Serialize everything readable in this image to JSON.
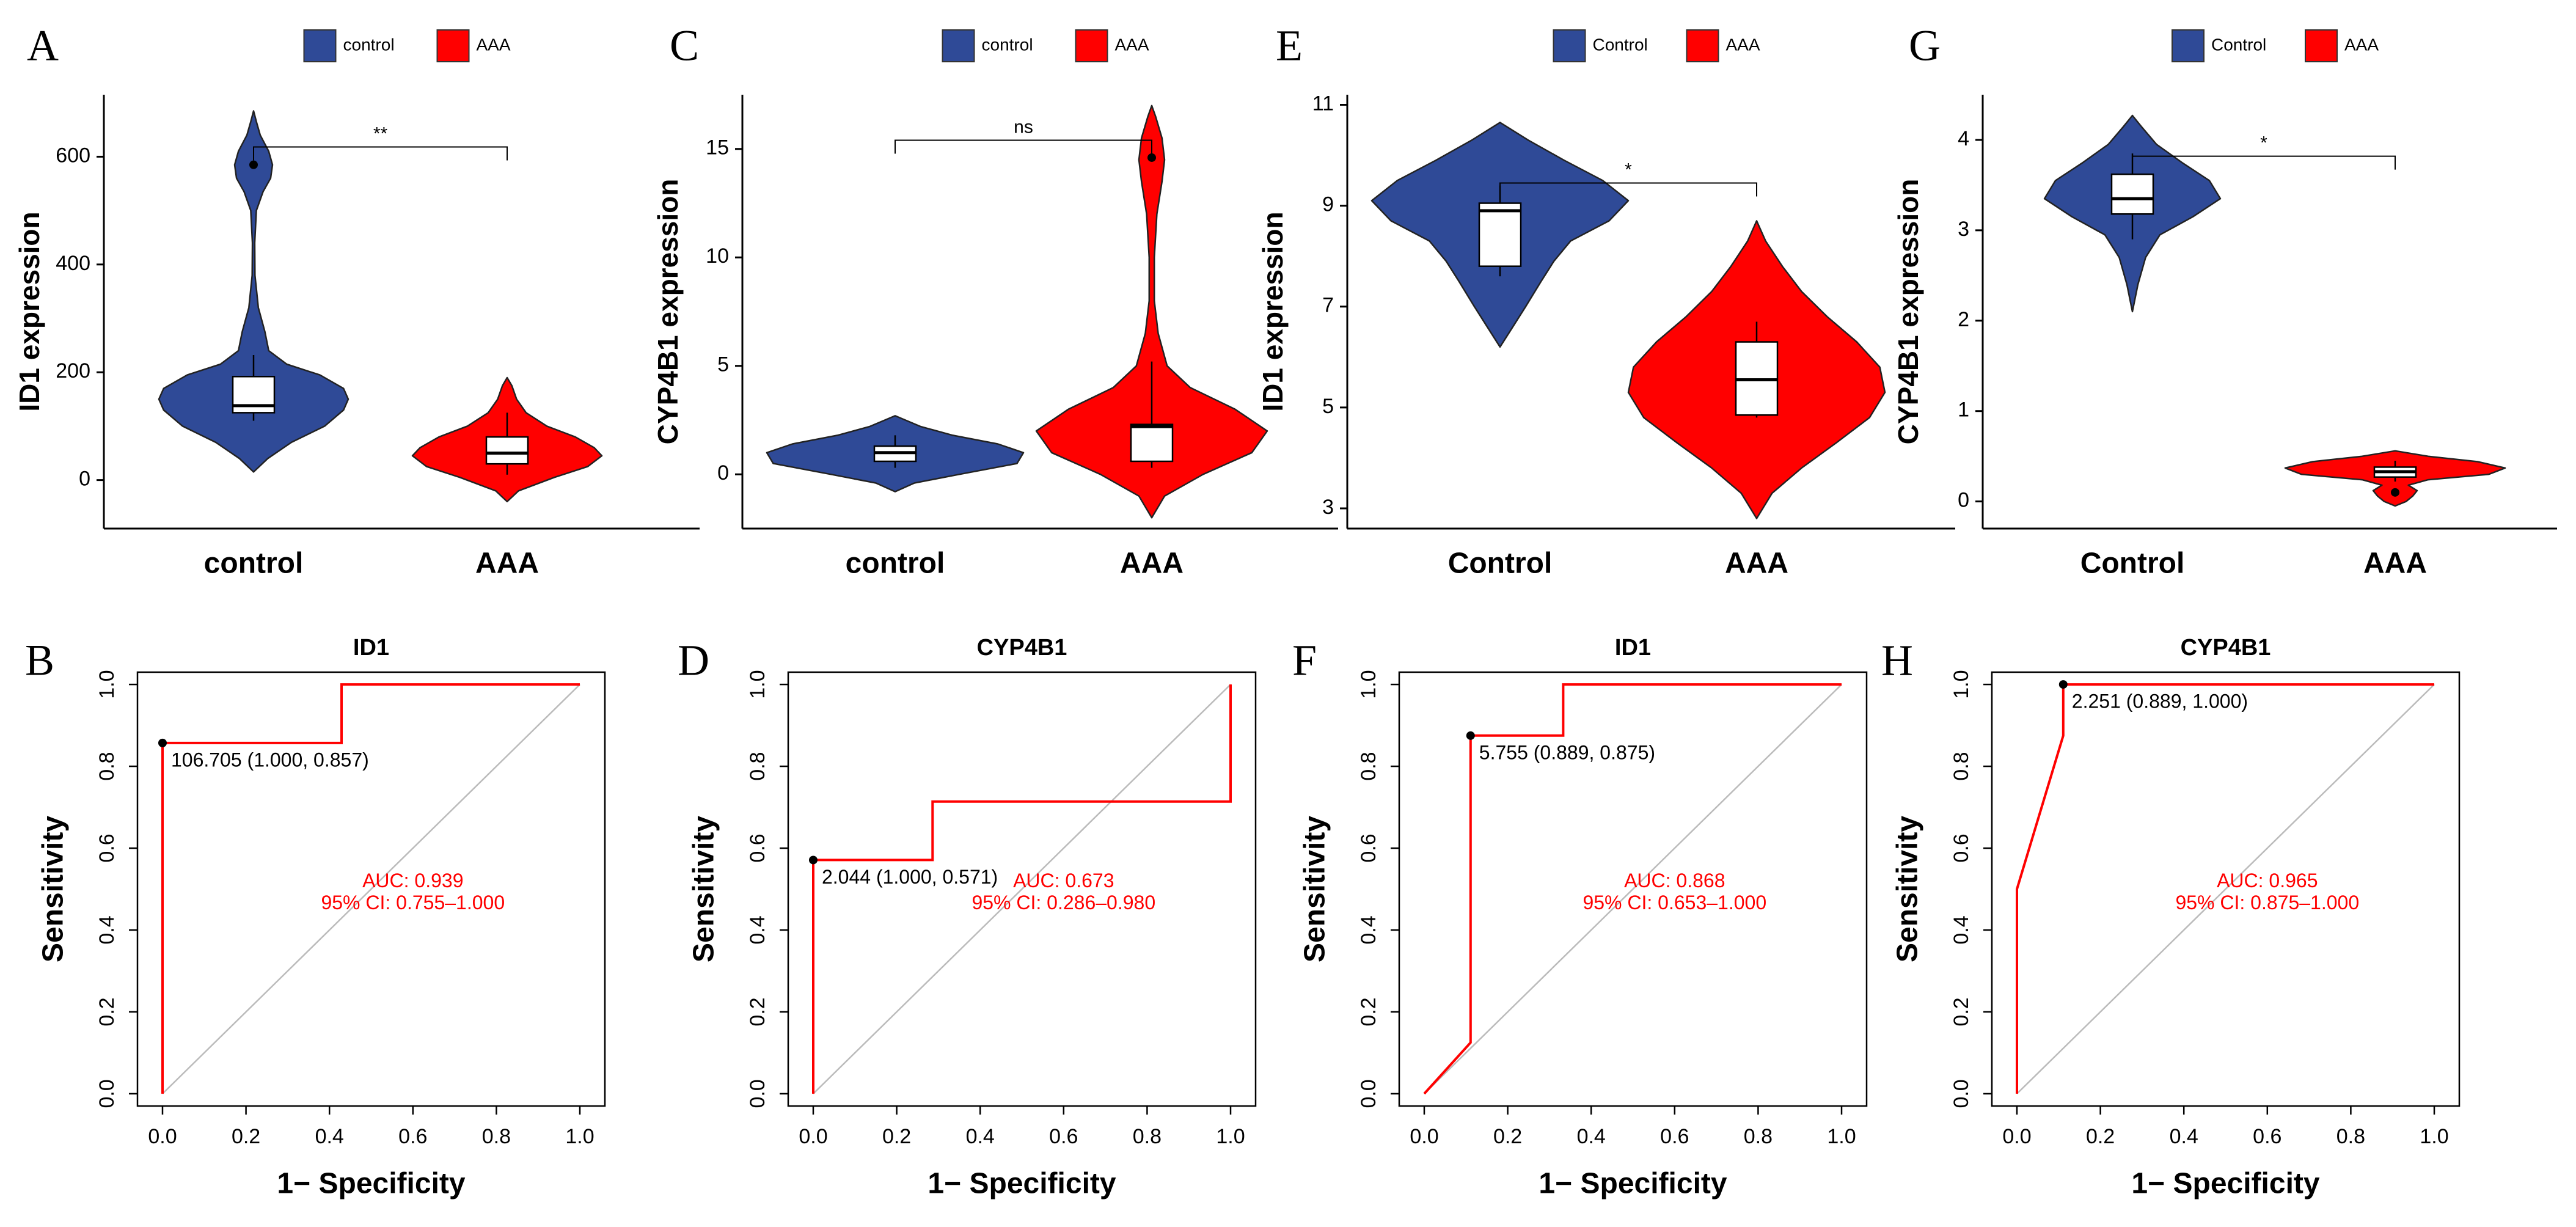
{
  "colors": {
    "control": "#2f4a97",
    "aaa": "#ff0000",
    "roc": "#ff0000",
    "diag": "#bbbbbb",
    "axis": "#000000"
  },
  "chart_data": [
    {
      "panel": "A",
      "type": "violin",
      "title": "",
      "xlabel": "",
      "ylabel": "ID1 expression",
      "ylim": [
        -90,
        715
      ],
      "yticks": [
        0,
        200,
        400,
        600
      ],
      "categories": [
        "control",
        "AAA"
      ],
      "legend": {
        "position": "top",
        "entries": [
          "control",
          "AAA"
        ]
      },
      "groups": [
        {
          "name": "control",
          "color_key": "control",
          "density": [
            [
              15,
              0
            ],
            [
              40,
              0.15
            ],
            [
              70,
              0.4
            ],
            [
              100,
              0.75
            ],
            [
              130,
              0.95
            ],
            [
              150,
              1.0
            ],
            [
              170,
              0.95
            ],
            [
              195,
              0.7
            ],
            [
              215,
              0.35
            ],
            [
              240,
              0.16
            ],
            [
              275,
              0.12
            ],
            [
              320,
              0.05
            ],
            [
              380,
              0.015
            ],
            [
              440,
              0.012
            ],
            [
              500,
              0.03
            ],
            [
              535,
              0.1
            ],
            [
              560,
              0.18
            ],
            [
              585,
              0.2
            ],
            [
              610,
              0.16
            ],
            [
              640,
              0.07
            ],
            [
              665,
              0.03
            ],
            [
              685,
              0
            ]
          ],
          "box": {
            "q1": 125,
            "median": 138,
            "q3": 192,
            "whisker_low": 110,
            "whisker_high": 232
          },
          "outliers": [
            585
          ]
        },
        {
          "name": "AAA",
          "color_key": "aaa",
          "density": [
            [
              -40,
              0
            ],
            [
              -20,
              0.12
            ],
            [
              5,
              0.5
            ],
            [
              25,
              0.85
            ],
            [
              45,
              1.0
            ],
            [
              60,
              0.92
            ],
            [
              80,
              0.72
            ],
            [
              100,
              0.42
            ],
            [
              125,
              0.2
            ],
            [
              150,
              0.1
            ],
            [
              175,
              0.05
            ],
            [
              190,
              0
            ]
          ],
          "box": {
            "q1": 30,
            "median": 50,
            "q3": 80,
            "whisker_low": 10,
            "whisker_high": 125
          },
          "outliers": []
        }
      ],
      "significance": {
        "label": "**",
        "y": 618,
        "from": "control",
        "to": "AAA"
      }
    },
    {
      "panel": "C",
      "type": "violin",
      "title": "",
      "xlabel": "",
      "ylabel": "CYP4B1 expression",
      "ylim": [
        -2.5,
        17.5
      ],
      "yticks": [
        0,
        5,
        10,
        15
      ],
      "categories": [
        "control",
        "AAA"
      ],
      "legend": {
        "position": "top",
        "entries": [
          "control",
          "AAA"
        ]
      },
      "groups": [
        {
          "name": "control",
          "color_key": "control",
          "density": [
            [
              -0.8,
              0
            ],
            [
              -0.4,
              0.15
            ],
            [
              0,
              0.5
            ],
            [
              0.5,
              0.95
            ],
            [
              1,
              1.0
            ],
            [
              1.4,
              0.8
            ],
            [
              1.8,
              0.45
            ],
            [
              2.2,
              0.2
            ],
            [
              2.7,
              0
            ]
          ],
          "box": {
            "q1": 0.6,
            "median": 1.0,
            "q3": 1.3,
            "whisker_low": 0.3,
            "whisker_high": 1.8
          },
          "outliers": []
        },
        {
          "name": "AAA",
          "color_key": "aaa",
          "density": [
            [
              -2,
              0
            ],
            [
              -1,
              0.1
            ],
            [
              0,
              0.4
            ],
            [
              1,
              0.78
            ],
            [
              2,
              0.9
            ],
            [
              3,
              0.65
            ],
            [
              4,
              0.3
            ],
            [
              5,
              0.12
            ],
            [
              6.5,
              0.05
            ],
            [
              8,
              0.02
            ],
            [
              10,
              0.02
            ],
            [
              12,
              0.04
            ],
            [
              13.5,
              0.08
            ],
            [
              14.5,
              0.1
            ],
            [
              15.5,
              0.08
            ],
            [
              16.5,
              0.03
            ],
            [
              17,
              0
            ]
          ],
          "box": {
            "q1": 0.6,
            "median": 2.2,
            "q3": 2.3,
            "whisker_low": 0.3,
            "whisker_high": 5.2
          },
          "outliers": [
            14.6
          ]
        }
      ],
      "significance": {
        "label": "ns",
        "y": 15.4,
        "from": "control",
        "to": "AAA"
      }
    },
    {
      "panel": "E",
      "type": "violin",
      "title": "",
      "xlabel": "",
      "ylabel": "ID1 expression",
      "ylim": [
        2.6,
        11.2
      ],
      "yticks": [
        3,
        5,
        7,
        9,
        11
      ],
      "categories": [
        "Control",
        "AAA"
      ],
      "legend": {
        "position": "top",
        "entries": [
          "Control",
          "AAA"
        ]
      },
      "groups": [
        {
          "name": "Control",
          "color_key": "control",
          "density": [
            [
              6.2,
              0
            ],
            [
              6.6,
              0.1
            ],
            [
              7.0,
              0.2
            ],
            [
              7.5,
              0.32
            ],
            [
              7.9,
              0.42
            ],
            [
              8.3,
              0.55
            ],
            [
              8.7,
              0.85
            ],
            [
              9.1,
              1.0
            ],
            [
              9.5,
              0.8
            ],
            [
              9.9,
              0.5
            ],
            [
              10.3,
              0.22
            ],
            [
              10.65,
              0
            ]
          ],
          "box": {
            "q1": 7.8,
            "median": 8.9,
            "q3": 9.05,
            "whisker_low": 7.6,
            "whisker_high": 9.4
          },
          "outliers": []
        },
        {
          "name": "AAA",
          "color_key": "aaa",
          "density": [
            [
              2.8,
              0
            ],
            [
              3.3,
              0.12
            ],
            [
              3.8,
              0.35
            ],
            [
              4.3,
              0.62
            ],
            [
              4.8,
              0.88
            ],
            [
              5.3,
              1.0
            ],
            [
              5.8,
              0.96
            ],
            [
              6.3,
              0.78
            ],
            [
              6.8,
              0.55
            ],
            [
              7.3,
              0.35
            ],
            [
              7.8,
              0.2
            ],
            [
              8.3,
              0.07
            ],
            [
              8.7,
              0
            ]
          ],
          "box": {
            "q1": 4.85,
            "median": 5.55,
            "q3": 6.3,
            "whisker_low": 4.8,
            "whisker_high": 6.7
          },
          "outliers": []
        }
      ],
      "significance": {
        "label": "*",
        "y": 9.45,
        "from": "Control",
        "to": "AAA"
      }
    },
    {
      "panel": "G",
      "type": "violin",
      "title": "",
      "xlabel": "",
      "ylabel": "CYP4B1 expression",
      "ylim": [
        -0.3,
        4.5
      ],
      "yticks": [
        0,
        1,
        2,
        3,
        4
      ],
      "categories": [
        "Control",
        "AAA"
      ],
      "legend": {
        "position": "top",
        "entries": [
          "Control",
          "AAA"
        ]
      },
      "groups": [
        {
          "name": "Control",
          "color_key": "control",
          "density": [
            [
              2.1,
              0
            ],
            [
              2.4,
              0.05
            ],
            [
              2.7,
              0.12
            ],
            [
              2.95,
              0.25
            ],
            [
              3.15,
              0.55
            ],
            [
              3.35,
              0.8
            ],
            [
              3.55,
              0.7
            ],
            [
              3.75,
              0.45
            ],
            [
              3.95,
              0.22
            ],
            [
              4.15,
              0.08
            ],
            [
              4.27,
              0
            ]
          ],
          "box": {
            "q1": 3.18,
            "median": 3.35,
            "q3": 3.62,
            "whisker_low": 2.9,
            "whisker_high": 3.85
          },
          "outliers": []
        },
        {
          "name": "AAA",
          "color_key": "aaa",
          "density": [
            [
              -0.05,
              0
            ],
            [
              0,
              0.1
            ],
            [
              0.06,
              0.16
            ],
            [
              0.12,
              0.2
            ],
            [
              0.18,
              0.12
            ],
            [
              0.24,
              0.3
            ],
            [
              0.3,
              0.85
            ],
            [
              0.37,
              1.0
            ],
            [
              0.44,
              0.75
            ],
            [
              0.5,
              0.3
            ],
            [
              0.56,
              0
            ]
          ],
          "box": {
            "q1": 0.27,
            "median": 0.33,
            "q3": 0.38,
            "whisker_low": 0.22,
            "whisker_high": 0.45
          },
          "outliers": [
            0.1
          ]
        }
      ],
      "significance": {
        "label": "*",
        "y": 3.82,
        "from": "Control",
        "to": "AAA"
      }
    },
    {
      "panel": "B",
      "type": "line",
      "title": "ID1",
      "xlabel": "1− Specificity",
      "ylabel": "Sensitivity",
      "xlim": [
        -0.06,
        1.06
      ],
      "ylim": [
        -0.03,
        1.03
      ],
      "xticks": [
        "0.0",
        "0.2",
        "0.4",
        "0.6",
        "0.8",
        "1.0"
      ],
      "yticks": [
        "0.0",
        "0.2",
        "0.4",
        "0.6",
        "0.8",
        "1.0"
      ],
      "roc": [
        [
          0,
          0
        ],
        [
          0,
          0.857
        ],
        [
          0.429,
          0.857
        ],
        [
          0.429,
          1.0
        ],
        [
          1,
          1
        ]
      ],
      "threshold_point": [
        0,
        0.857
      ],
      "threshold_label": "106.705 (1.000, 0.857)",
      "auc": "AUC: 0.939",
      "ci": "95% CI: 0.755–1.000",
      "annotation_xy": [
        0.6,
        0.49
      ]
    },
    {
      "panel": "D",
      "type": "line",
      "title": "CYP4B1",
      "xlabel": "1− Specificity",
      "ylabel": "Sensitivity",
      "xlim": [
        -0.06,
        1.06
      ],
      "ylim": [
        -0.03,
        1.03
      ],
      "xticks": [
        "0.0",
        "0.2",
        "0.4",
        "0.6",
        "0.8",
        "1.0"
      ],
      "yticks": [
        "0.0",
        "0.2",
        "0.4",
        "0.6",
        "0.8",
        "1.0"
      ],
      "roc": [
        [
          0,
          0
        ],
        [
          0,
          0.571
        ],
        [
          0.286,
          0.571
        ],
        [
          0.286,
          0.714
        ],
        [
          1,
          0.714
        ],
        [
          1,
          1
        ]
      ],
      "threshold_point": [
        0,
        0.571
      ],
      "threshold_label": "2.044 (1.000, 0.571)",
      "auc": "AUC: 0.673",
      "ci": "95% CI: 0.286–0.980",
      "annotation_xy": [
        0.6,
        0.49
      ]
    },
    {
      "panel": "F",
      "type": "line",
      "title": "ID1",
      "xlabel": "1− Specificity",
      "ylabel": "Sensitivity",
      "xlim": [
        -0.06,
        1.06
      ],
      "ylim": [
        -0.03,
        1.03
      ],
      "xticks": [
        "0.0",
        "0.2",
        "0.4",
        "0.6",
        "0.8",
        "1.0"
      ],
      "yticks": [
        "0.0",
        "0.2",
        "0.4",
        "0.6",
        "0.8",
        "1.0"
      ],
      "roc": [
        [
          0,
          0
        ],
        [
          0.111,
          0.125
        ],
        [
          0.111,
          0.875
        ],
        [
          0.333,
          0.875
        ],
        [
          0.333,
          1.0
        ],
        [
          1,
          1
        ]
      ],
      "threshold_point": [
        0.111,
        0.875
      ],
      "threshold_label": "5.755 (0.889, 0.875)",
      "auc": "AUC: 0.868",
      "ci": "95% CI: 0.653–1.000",
      "annotation_xy": [
        0.6,
        0.49
      ]
    },
    {
      "panel": "H",
      "type": "line",
      "title": "CYP4B1",
      "xlabel": "1− Specificity",
      "ylabel": "Sensitivity",
      "xlim": [
        -0.06,
        1.06
      ],
      "ylim": [
        -0.03,
        1.03
      ],
      "xticks": [
        "0.0",
        "0.2",
        "0.4",
        "0.6",
        "0.8",
        "1.0"
      ],
      "yticks": [
        "0.0",
        "0.2",
        "0.4",
        "0.6",
        "0.8",
        "1.0"
      ],
      "roc": [
        [
          0,
          0
        ],
        [
          0,
          0.5
        ],
        [
          0.111,
          0.875
        ],
        [
          0.111,
          1.0
        ],
        [
          1,
          1
        ]
      ],
      "threshold_point": [
        0.111,
        1.0
      ],
      "threshold_label": "2.251 (0.889, 1.000)",
      "auc": "AUC: 0.965",
      "ci": "95% CI: 0.875–1.000",
      "annotation_xy": [
        0.6,
        0.49
      ]
    }
  ]
}
